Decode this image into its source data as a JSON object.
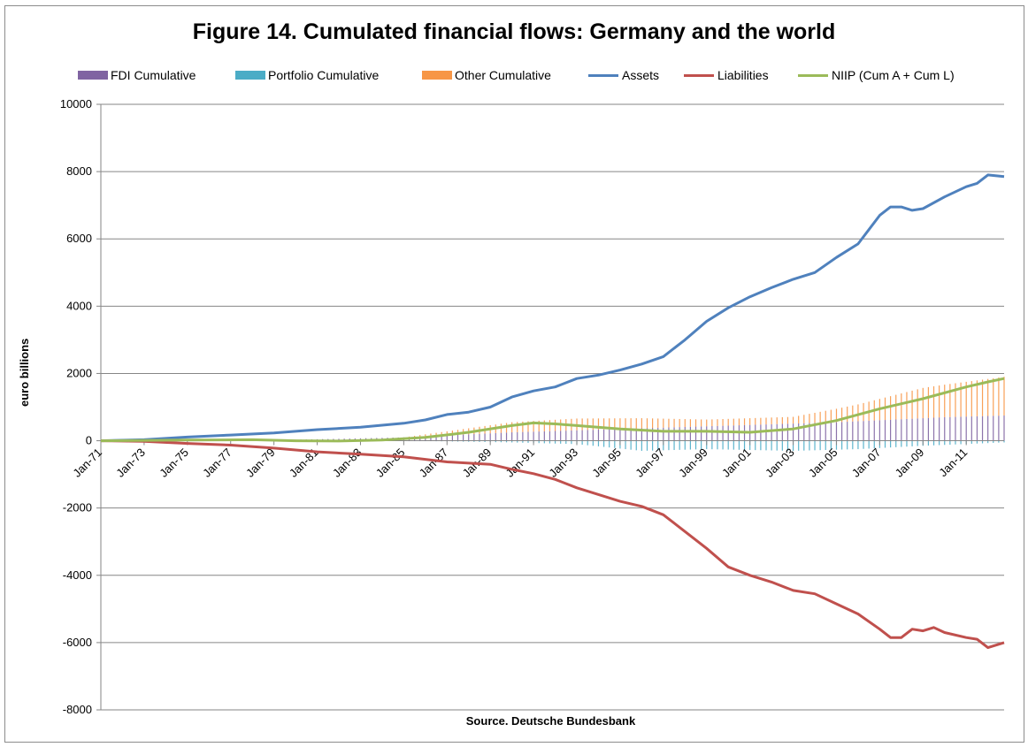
{
  "chart_data": {
    "type": "line",
    "title": "Figure  14. Cumulated financial flows: Germany and the world",
    "ylabel": "euro billions",
    "xlabel": "Source. Deutsche Bundesbank",
    "ylim": [
      -8000,
      10000
    ],
    "yticks": [
      10000,
      8000,
      6000,
      4000,
      2000,
      0,
      -2000,
      -4000,
      -6000,
      -8000
    ],
    "x_tick_labels": [
      "Jan-71",
      "Jan-73",
      "Jan-75",
      "Jan-77",
      "Jan-79",
      "Jan-81",
      "Jan-83",
      "Jan-85",
      "Jan-87",
      "Jan-89",
      "Jan-91",
      "Jan-93",
      "Jan-95",
      "Jan-97",
      "Jan-99",
      "Jan-01",
      "Jan-03",
      "Jan-05",
      "Jan-07",
      "Jan-09",
      "Jan-11"
    ],
    "x_range": [
      1971.0,
      2012.75
    ],
    "legend": [
      {
        "name": "FDI Cumulative",
        "kind": "bar",
        "color": "#8064a2"
      },
      {
        "name": "Portfolio Cumulative",
        "kind": "bar",
        "color": "#4bacc6"
      },
      {
        "name": "Other Cumulative",
        "kind": "bar",
        "color": "#f79646"
      },
      {
        "name": "Assets",
        "kind": "line",
        "color": "#4f81bd"
      },
      {
        "name": "Liabilities",
        "kind": "line",
        "color": "#c0504d"
      },
      {
        "name": "NIIP (Cum A + Cum L)",
        "kind": "line",
        "color": "#9bbb59"
      }
    ],
    "grid": true,
    "series": [
      {
        "name": "Assets",
        "color": "#4f81bd",
        "points": [
          [
            1971,
            0
          ],
          [
            1973,
            30
          ],
          [
            1975,
            110
          ],
          [
            1977,
            170
          ],
          [
            1979,
            230
          ],
          [
            1981,
            330
          ],
          [
            1983,
            400
          ],
          [
            1985,
            520
          ],
          [
            1986,
            620
          ],
          [
            1987,
            780
          ],
          [
            1988,
            850
          ],
          [
            1989,
            1000
          ],
          [
            1990,
            1300
          ],
          [
            1991,
            1480
          ],
          [
            1992,
            1600
          ],
          [
            1993,
            1850
          ],
          [
            1994,
            1950
          ],
          [
            1995,
            2100
          ],
          [
            1996,
            2280
          ],
          [
            1997,
            2500
          ],
          [
            1998,
            3000
          ],
          [
            1999,
            3550
          ],
          [
            2000,
            3950
          ],
          [
            2001,
            4280
          ],
          [
            2002,
            4550
          ],
          [
            2003,
            4800
          ],
          [
            2004,
            5000
          ],
          [
            2005,
            5450
          ],
          [
            2006,
            5850
          ],
          [
            2007,
            6700
          ],
          [
            2007.5,
            6950
          ],
          [
            2008,
            6950
          ],
          [
            2008.5,
            6850
          ],
          [
            2009,
            6900
          ],
          [
            2010,
            7250
          ],
          [
            2011,
            7550
          ],
          [
            2011.5,
            7650
          ],
          [
            2012,
            7900
          ],
          [
            2012.75,
            7850
          ]
        ]
      },
      {
        "name": "Liabilities",
        "color": "#c0504d",
        "points": [
          [
            1971,
            0
          ],
          [
            1973,
            -20
          ],
          [
            1975,
            -80
          ],
          [
            1977,
            -130
          ],
          [
            1979,
            -220
          ],
          [
            1981,
            -330
          ],
          [
            1983,
            -400
          ],
          [
            1985,
            -480
          ],
          [
            1987,
            -630
          ],
          [
            1989,
            -700
          ],
          [
            1990,
            -850
          ],
          [
            1991,
            -980
          ],
          [
            1992,
            -1150
          ],
          [
            1993,
            -1400
          ],
          [
            1994,
            -1600
          ],
          [
            1995,
            -1800
          ],
          [
            1996,
            -1950
          ],
          [
            1997,
            -2200
          ],
          [
            1998,
            -2700
          ],
          [
            1999,
            -3200
          ],
          [
            2000,
            -3750
          ],
          [
            2001,
            -4000
          ],
          [
            2002,
            -4200
          ],
          [
            2003,
            -4450
          ],
          [
            2004,
            -4550
          ],
          [
            2005,
            -4850
          ],
          [
            2006,
            -5150
          ],
          [
            2007,
            -5600
          ],
          [
            2007.5,
            -5850
          ],
          [
            2008,
            -5850
          ],
          [
            2008.5,
            -5600
          ],
          [
            2009,
            -5650
          ],
          [
            2009.5,
            -5550
          ],
          [
            2010,
            -5700
          ],
          [
            2011,
            -5850
          ],
          [
            2011.5,
            -5900
          ],
          [
            2012,
            -6150
          ],
          [
            2012.75,
            -6000
          ]
        ]
      },
      {
        "name": "NIIP (Cum A + Cum L)",
        "color": "#9bbb59",
        "points": [
          [
            1971,
            0
          ],
          [
            1975,
            20
          ],
          [
            1978,
            30
          ],
          [
            1980,
            0
          ],
          [
            1982,
            -10
          ],
          [
            1984,
            20
          ],
          [
            1986,
            100
          ],
          [
            1988,
            250
          ],
          [
            1990,
            450
          ],
          [
            1991,
            530
          ],
          [
            1992,
            500
          ],
          [
            1993,
            450
          ],
          [
            1995,
            350
          ],
          [
            1997,
            280
          ],
          [
            1999,
            280
          ],
          [
            2001,
            250
          ],
          [
            2003,
            350
          ],
          [
            2005,
            600
          ],
          [
            2007,
            950
          ],
          [
            2009,
            1250
          ],
          [
            2011,
            1600
          ],
          [
            2012,
            1750
          ],
          [
            2012.75,
            1850
          ]
        ]
      }
    ],
    "stacked_bars": {
      "FDI Cumulative": {
        "color": "#8064a2",
        "points": [
          [
            1971,
            0
          ],
          [
            1980,
            30
          ],
          [
            1985,
            100
          ],
          [
            1990,
            250
          ],
          [
            1995,
            350
          ],
          [
            2000,
            450
          ],
          [
            2005,
            550
          ],
          [
            2010,
            700
          ],
          [
            2012.75,
            750
          ]
        ]
      },
      "Portfolio Cumulative": {
        "color": "#4bacc6",
        "points": [
          [
            1971,
            0
          ],
          [
            1985,
            0
          ],
          [
            1990,
            -50
          ],
          [
            1993,
            -100
          ],
          [
            1996,
            -300
          ],
          [
            1999,
            -250
          ],
          [
            2003,
            -300
          ],
          [
            2006,
            -250
          ],
          [
            2009,
            -150
          ],
          [
            2012.75,
            -50
          ]
        ]
      },
      "Other Cumulative": {
        "color": "#f79646",
        "points": [
          [
            1971,
            0
          ],
          [
            1985,
            0
          ],
          [
            1990,
            300
          ],
          [
            1993,
            350
          ],
          [
            1996,
            300
          ],
          [
            1999,
            200
          ],
          [
            2003,
            200
          ],
          [
            2006,
            500
          ],
          [
            2009,
            900
          ],
          [
            2012.75,
            1150
          ]
        ]
      }
    }
  }
}
